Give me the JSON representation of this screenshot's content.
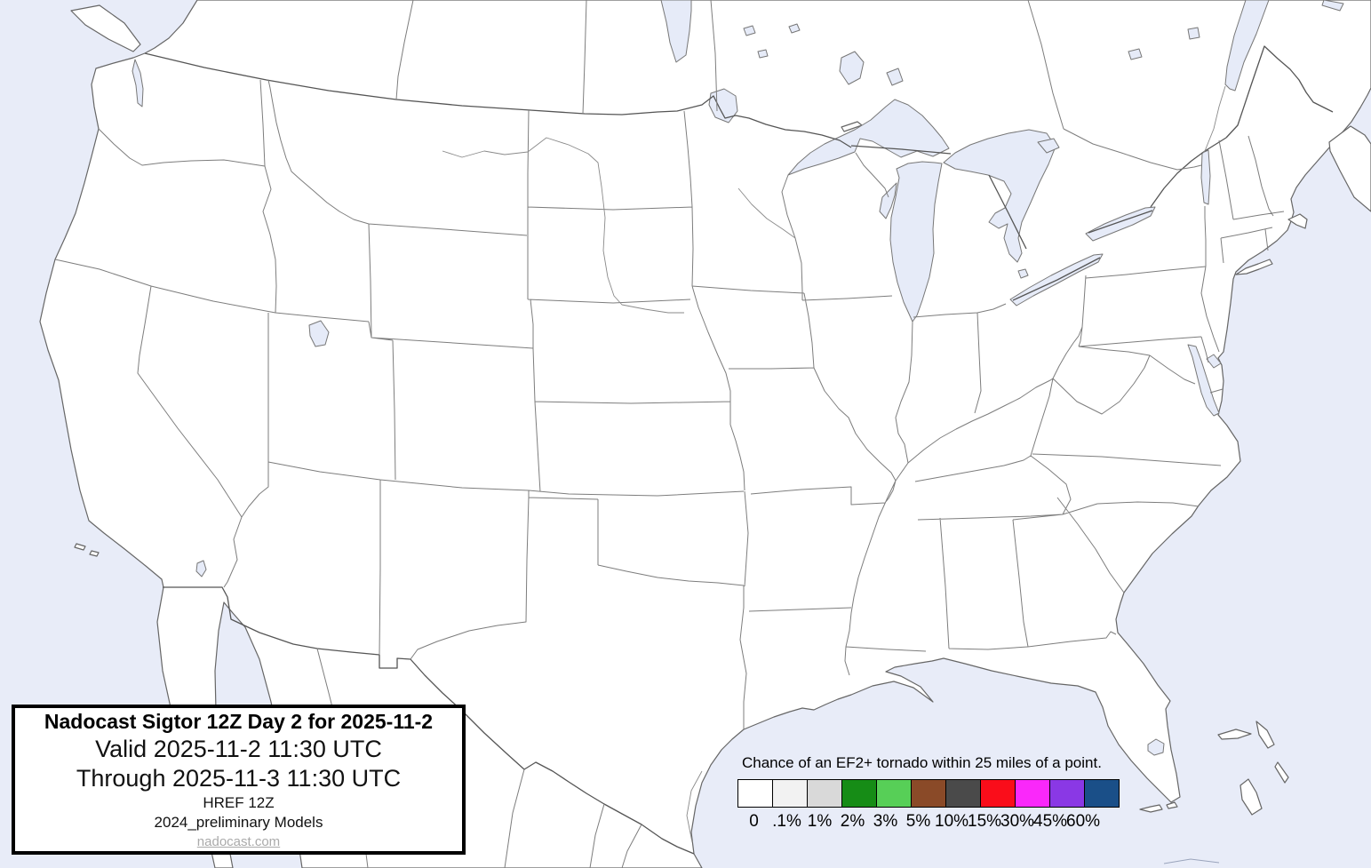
{
  "title_box": {
    "line1": "Nadocast Sigtor 12Z Day 2 for 2025-11-2",
    "line2": "Valid 2025-11-2 11:30 UTC",
    "line3": "Through 2025-11-3 11:30 UTC",
    "line4": "HREF 12Z",
    "line5": "2024_preliminary Models",
    "link": "nadocast.com"
  },
  "legend": {
    "title": "Chance of an EF2+ tornado within 25 miles of a point.",
    "items": [
      {
        "label": "0",
        "color": "#ffffff"
      },
      {
        "label": ".1%",
        "color": "#f2f2f2"
      },
      {
        "label": "1%",
        "color": "#d9d9d9"
      },
      {
        "label": "2%",
        "color": "#168c16"
      },
      {
        "label": "3%",
        "color": "#57cf57"
      },
      {
        "label": "5%",
        "color": "#8a4a28"
      },
      {
        "label": "10%",
        "color": "#4a4a4a"
      },
      {
        "label": "15%",
        "color": "#fa0d1a"
      },
      {
        "label": "30%",
        "color": "#fa28fa"
      },
      {
        "label": "45%",
        "color": "#8a38e5"
      },
      {
        "label": "60%",
        "color": "#1a4f88"
      }
    ]
  },
  "map": {
    "colors": {
      "water": "#e8ecf8",
      "land": "#ffffff",
      "coast": "#666666",
      "state_border": "#7d7d7d",
      "national_border": "#555555",
      "lake_fill": "#e6ebf8",
      "lake_stroke": "#777777",
      "river": "#8a8a8a"
    }
  }
}
